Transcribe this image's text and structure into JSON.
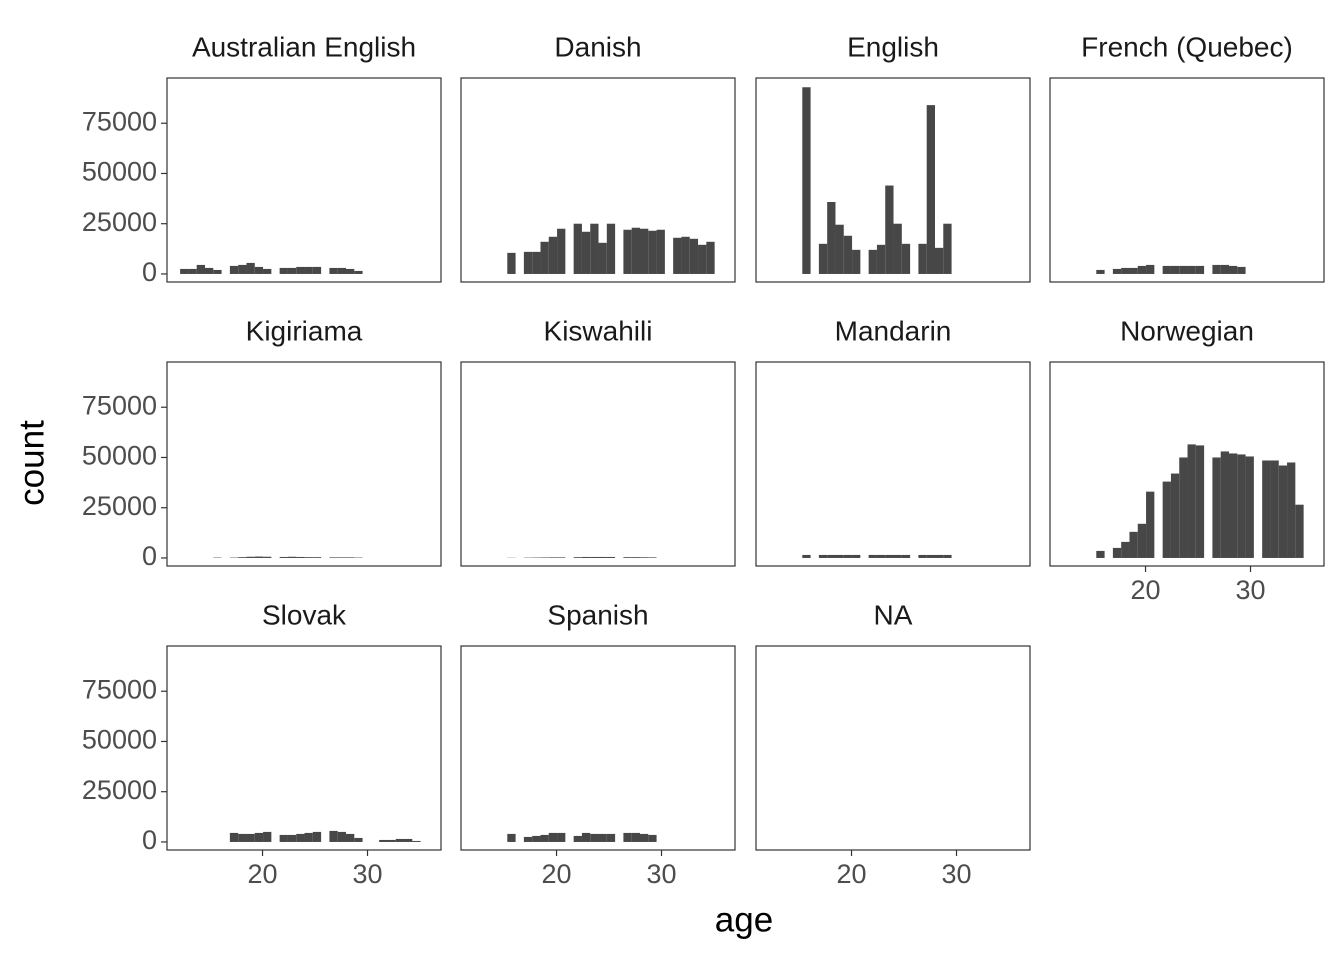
{
  "chart_data": {
    "type": "histogram",
    "xlabel": "age",
    "ylabel": "count",
    "color": "#474747",
    "bins": [
      12.15,
      12.94,
      13.73,
      14.52,
      15.31,
      16.1,
      16.89,
      17.68,
      18.47,
      19.26,
      20.05,
      20.84,
      21.63,
      22.42,
      23.21,
      24,
      24.79,
      25.58,
      26.37,
      27.16,
      27.95,
      28.74,
      29.53,
      30.32,
      31.11,
      31.9,
      32.69,
      33.48,
      34.27,
      35.06,
      35.85
    ],
    "xlim": [
      10.9,
      37.0
    ],
    "xticks": [
      20,
      30
    ],
    "ylim": [
      -4000,
      97500
    ],
    "yticks": [
      0,
      25000,
      50000,
      75000
    ],
    "facets": [
      {
        "title": "Australian English",
        "counts": [
          2500,
          2500,
          4500,
          3000,
          2000,
          0,
          4000,
          4500,
          5500,
          3500,
          2500,
          0,
          3000,
          3000,
          3500,
          3500,
          3500,
          0,
          3000,
          3000,
          2500,
          1500,
          0,
          0,
          0,
          0,
          0,
          0,
          0,
          0
        ]
      },
      {
        "title": "Danish",
        "counts": [
          0,
          0,
          0,
          0,
          10500,
          0,
          11000,
          11000,
          16000,
          18500,
          22500,
          0,
          25000,
          21000,
          25000,
          15500,
          25000,
          0,
          22000,
          23000,
          22500,
          21500,
          22000,
          0,
          18000,
          18500,
          17500,
          14500,
          16000,
          0
        ]
      },
      {
        "title": "English",
        "counts": [
          0,
          0,
          0,
          0,
          92900,
          0,
          15000,
          35800,
          24500,
          19000,
          12000,
          0,
          12000,
          14500,
          44000,
          25000,
          15000,
          0,
          15000,
          84000,
          13000,
          25000,
          0,
          0,
          0,
          0,
          0,
          0,
          0,
          0
        ]
      },
      {
        "title": "French (Quebec)",
        "counts": [
          0,
          0,
          0,
          0,
          2000,
          0,
          2500,
          3000,
          3000,
          4000,
          4500,
          0,
          4000,
          4000,
          4000,
          4000,
          4000,
          0,
          4500,
          4500,
          4000,
          3500,
          0,
          0,
          0,
          0,
          0,
          0,
          0,
          0
        ]
      },
      {
        "title": "Kigiriama",
        "counts": [
          0,
          0,
          0,
          0,
          200,
          0,
          200,
          400,
          600,
          700,
          600,
          0,
          500,
          600,
          500,
          400,
          400,
          0,
          300,
          300,
          300,
          200,
          0,
          0,
          0,
          0,
          0,
          0,
          0,
          0
        ]
      },
      {
        "title": "Kiswahili",
        "counts": [
          0,
          0,
          0,
          0,
          100,
          0,
          150,
          200,
          250,
          300,
          300,
          0,
          400,
          500,
          500,
          500,
          500,
          0,
          400,
          400,
          350,
          300,
          0,
          0,
          0,
          0,
          0,
          0,
          0,
          0
        ]
      },
      {
        "title": "Mandarin",
        "counts": [
          0,
          0,
          0,
          0,
          1500,
          0,
          1500,
          1500,
          1500,
          1500,
          1500,
          0,
          1500,
          1500,
          1500,
          1500,
          1500,
          0,
          1500,
          1500,
          1500,
          1500,
          0,
          0,
          0,
          0,
          0,
          0,
          0,
          0
        ]
      },
      {
        "title": "Norwegian",
        "counts": [
          0,
          0,
          0,
          0,
          3500,
          0,
          5000,
          8000,
          13000,
          17000,
          33000,
          0,
          38000,
          42000,
          50000,
          56500,
          56000,
          0,
          50000,
          53000,
          52000,
          51500,
          50500,
          0,
          48500,
          48500,
          46000,
          47500,
          26500,
          0
        ]
      },
      {
        "title": "Slovak",
        "counts": [
          0,
          0,
          0,
          0,
          0,
          0,
          4500,
          4000,
          4000,
          4500,
          5000,
          0,
          3500,
          3500,
          4000,
          4500,
          5000,
          0,
          5500,
          5000,
          4000,
          2000,
          0,
          0,
          1000,
          1000,
          1500,
          1500,
          500,
          0
        ]
      },
      {
        "title": "Spanish",
        "counts": [
          0,
          0,
          0,
          0,
          4000,
          0,
          2500,
          3000,
          3500,
          4500,
          4500,
          0,
          3000,
          4500,
          4000,
          4000,
          4000,
          0,
          4500,
          4500,
          4000,
          3500,
          0,
          0,
          0,
          0,
          0,
          0,
          0,
          0
        ]
      },
      {
        "title": "NA",
        "counts": [
          0,
          0,
          0,
          0,
          0,
          0,
          0,
          0,
          0,
          0,
          0,
          0,
          0,
          0,
          0,
          0,
          0,
          0,
          0,
          0,
          0,
          0,
          0,
          0,
          0,
          0,
          0,
          0,
          0,
          0
        ]
      }
    ]
  }
}
